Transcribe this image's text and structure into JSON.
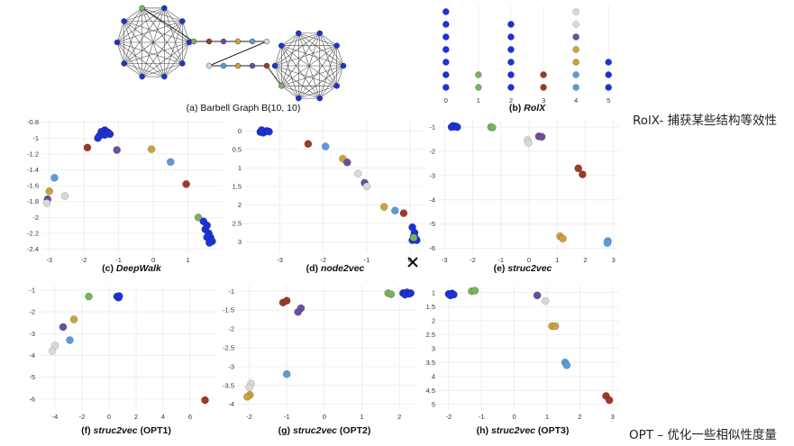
{
  "colors": {
    "blue": "#1d32d4",
    "red": "#9c3a2a",
    "green": "#79b25c",
    "purple": "#6a4f9a",
    "yellow": "#c9a23e",
    "lightblue": "#5b9bd8",
    "lightgray": "#d8d8d8",
    "edge": "#555555"
  },
  "figure_a": {
    "caption": "(a) Barbell Graph B(10, 10)"
  },
  "notes": {
    "rolx_note": "RolX- 捕获某些结构等效性",
    "opt_note": "OPT – 优化一些相似性度量"
  },
  "chart_data": [
    {
      "id": "b",
      "type": "scatter",
      "caption_label": "(b)",
      "caption_name": "RolX",
      "caption_suffix": "",
      "xlim": [
        -0.3,
        5.3
      ],
      "ylim": [
        0.5,
        7.5
      ],
      "xticks": [
        0,
        1,
        2,
        3,
        4,
        5
      ],
      "yticks": [],
      "points": [
        [
          0,
          1,
          "blue"
        ],
        [
          0,
          2,
          "blue"
        ],
        [
          0,
          3,
          "blue"
        ],
        [
          0,
          4,
          "blue"
        ],
        [
          0,
          5,
          "blue"
        ],
        [
          0,
          6,
          "blue"
        ],
        [
          0,
          7,
          "blue"
        ],
        [
          1,
          1,
          "green"
        ],
        [
          1,
          2,
          "green"
        ],
        [
          2,
          1,
          "blue"
        ],
        [
          2,
          2,
          "blue"
        ],
        [
          2,
          3,
          "blue"
        ],
        [
          2,
          4,
          "blue"
        ],
        [
          2,
          5,
          "blue"
        ],
        [
          2,
          6,
          "blue"
        ],
        [
          3,
          1,
          "red"
        ],
        [
          3,
          2,
          "red"
        ],
        [
          4,
          1,
          "lightblue"
        ],
        [
          4,
          2,
          "lightblue"
        ],
        [
          4,
          3,
          "yellow"
        ],
        [
          4,
          4,
          "yellow"
        ],
        [
          4,
          5,
          "purple"
        ],
        [
          4,
          6,
          "lightgray"
        ],
        [
          4,
          7,
          "lightgray"
        ],
        [
          5,
          1,
          "blue"
        ],
        [
          5,
          2,
          "blue"
        ],
        [
          5,
          3,
          "blue"
        ]
      ]
    },
    {
      "id": "c",
      "type": "scatter",
      "caption_label": "(c)",
      "caption_name": "DeepWalk",
      "caption_suffix": "",
      "xlim": [
        -3.2,
        2.0
      ],
      "ylim": [
        -2.45,
        -0.77
      ],
      "xticks": [
        -3,
        -2,
        -1,
        0,
        1
      ],
      "yticks": [
        -0.8,
        -1,
        -1.2,
        -1.4,
        -1.6,
        -1.8,
        -2,
        -2.2,
        -2.4
      ],
      "points": [
        [
          -1.4,
          -0.9,
          "blue"
        ],
        [
          -1.35,
          -0.92,
          "blue"
        ],
        [
          -1.3,
          -0.93,
          "blue"
        ],
        [
          -1.45,
          -0.95,
          "blue"
        ],
        [
          -1.5,
          -0.92,
          "blue"
        ],
        [
          -1.25,
          -0.95,
          "blue"
        ],
        [
          -1.55,
          -0.97,
          "blue"
        ],
        [
          -1.4,
          -0.96,
          "blue"
        ],
        [
          -1.6,
          -1.0,
          "blue"
        ],
        [
          -1.9,
          -1.12,
          "red"
        ],
        [
          -1.05,
          -1.15,
          "purple"
        ],
        [
          -0.05,
          -1.14,
          "yellow"
        ],
        [
          0.5,
          -1.3,
          "lightblue"
        ],
        [
          0.95,
          -1.58,
          "red"
        ],
        [
          1.3,
          -2.0,
          "green"
        ],
        [
          1.45,
          -2.05,
          "blue"
        ],
        [
          1.55,
          -2.1,
          "blue"
        ],
        [
          1.5,
          -2.15,
          "blue"
        ],
        [
          1.6,
          -2.2,
          "blue"
        ],
        [
          1.65,
          -2.25,
          "blue"
        ],
        [
          1.55,
          -2.25,
          "blue"
        ],
        [
          1.7,
          -2.3,
          "blue"
        ],
        [
          1.62,
          -2.32,
          "blue"
        ],
        [
          -2.85,
          -1.5,
          "lightblue"
        ],
        [
          -2.55,
          -1.73,
          "lightgray"
        ],
        [
          -3.0,
          -1.67,
          "yellow"
        ],
        [
          -3.05,
          -1.77,
          "purple"
        ],
        [
          -3.07,
          -1.82,
          "lightgray"
        ]
      ]
    },
    {
      "id": "d",
      "type": "scatter",
      "caption_label": "(d)",
      "caption_name": "node2vec",
      "caption_suffix": "",
      "xlim": [
        -3.8,
        0.35
      ],
      "ylim": [
        3.3,
        -0.3
      ],
      "xticks": [
        -3,
        -2,
        -1,
        0
      ],
      "yticks": [
        0,
        0.5,
        1,
        1.5,
        2,
        2.5,
        3
      ],
      "points": [
        [
          -3.4,
          0.0,
          "blue"
        ],
        [
          -3.35,
          0.02,
          "blue"
        ],
        [
          -3.3,
          0.0,
          "blue"
        ],
        [
          -3.45,
          0.03,
          "blue"
        ],
        [
          -3.38,
          0.05,
          "blue"
        ],
        [
          -3.25,
          0.02,
          "blue"
        ],
        [
          -3.42,
          -0.02,
          "blue"
        ],
        [
          -2.35,
          0.35,
          "red"
        ],
        [
          -1.95,
          0.42,
          "lightblue"
        ],
        [
          -1.55,
          0.75,
          "yellow"
        ],
        [
          -1.45,
          0.85,
          "purple"
        ],
        [
          -1.2,
          1.15,
          "lightgray"
        ],
        [
          -1.05,
          1.4,
          "purple"
        ],
        [
          -1.0,
          1.5,
          "lightgray"
        ],
        [
          -0.6,
          2.05,
          "yellow"
        ],
        [
          -0.35,
          2.15,
          "lightblue"
        ],
        [
          -0.15,
          2.22,
          "red"
        ],
        [
          0.05,
          2.6,
          "blue"
        ],
        [
          0.1,
          2.75,
          "blue"
        ],
        [
          0.08,
          2.85,
          "blue"
        ],
        [
          0.12,
          2.9,
          "blue"
        ],
        [
          0.05,
          2.95,
          "blue"
        ],
        [
          0.15,
          2.95,
          "blue"
        ],
        [
          0.08,
          2.88,
          "green"
        ]
      ]
    },
    {
      "id": "e",
      "type": "scatter",
      "caption_label": "(e)",
      "caption_name": "struc2vec",
      "caption_suffix": "",
      "xlim": [
        -3.2,
        3.2
      ],
      "ylim": [
        -6.2,
        -0.7
      ],
      "xticks": [
        -3,
        -2,
        -1,
        0,
        1,
        2,
        3
      ],
      "yticks": [
        -1,
        -2,
        -3,
        -4,
        -5,
        -6
      ],
      "points": [
        [
          -2.7,
          -0.95,
          "blue"
        ],
        [
          -2.65,
          -0.98,
          "blue"
        ],
        [
          -2.6,
          -0.97,
          "blue"
        ],
        [
          -2.75,
          -1.0,
          "blue"
        ],
        [
          -2.55,
          -1.0,
          "blue"
        ],
        [
          -1.35,
          -1.0,
          "green"
        ],
        [
          -1.3,
          -1.02,
          "green"
        ],
        [
          0.35,
          -1.38,
          "purple"
        ],
        [
          0.45,
          -1.4,
          "purple"
        ],
        [
          -0.05,
          -1.53,
          "lightgray"
        ],
        [
          -0.02,
          -1.65,
          "lightgray"
        ],
        [
          1.75,
          -2.7,
          "red"
        ],
        [
          1.9,
          -2.95,
          "red"
        ],
        [
          1.1,
          -5.5,
          "yellow"
        ],
        [
          1.2,
          -5.6,
          "yellow"
        ],
        [
          2.8,
          -5.7,
          "lightblue"
        ],
        [
          2.78,
          -5.78,
          "lightblue"
        ]
      ]
    },
    {
      "id": "f",
      "type": "scatter",
      "caption_label": "(f)",
      "caption_name": "struc2vec",
      "caption_suffix": " (OPT1)",
      "xlim": [
        -5.2,
        8.0
      ],
      "ylim": [
        -6.5,
        -0.8
      ],
      "xticks": [
        -4,
        -2,
        0,
        2,
        4,
        6
      ],
      "yticks": [
        -1,
        -2,
        -3,
        -4,
        -5,
        -6
      ],
      "points": [
        [
          -1.5,
          -1.3,
          "green"
        ],
        [
          0.6,
          -1.3,
          "blue"
        ],
        [
          0.7,
          -1.35,
          "blue"
        ],
        [
          0.75,
          -1.28,
          "blue"
        ],
        [
          -3.4,
          -2.7,
          "purple"
        ],
        [
          -2.6,
          -2.35,
          "yellow"
        ],
        [
          -2.9,
          -3.3,
          "lightblue"
        ],
        [
          -4.0,
          -3.55,
          "lightgray"
        ],
        [
          -4.2,
          -3.8,
          "lightgray"
        ],
        [
          7.1,
          -6.05,
          "red"
        ]
      ]
    },
    {
      "id": "g",
      "type": "scatter",
      "caption_label": "(g)",
      "caption_name": "struc2vec",
      "caption_suffix": " (OPT2)",
      "xlim": [
        -2.3,
        2.5
      ],
      "ylim": [
        -4.15,
        -0.85
      ],
      "xticks": [
        -2,
        -1,
        0,
        1,
        2
      ],
      "yticks": [
        -1,
        -1.5,
        -2,
        -2.5,
        -3,
        -3.5,
        -4
      ],
      "points": [
        [
          1.7,
          -1.05,
          "green"
        ],
        [
          1.78,
          -1.08,
          "green"
        ],
        [
          2.1,
          -1.05,
          "blue"
        ],
        [
          2.2,
          -1.03,
          "blue"
        ],
        [
          2.25,
          -1.07,
          "blue"
        ],
        [
          2.15,
          -1.09,
          "blue"
        ],
        [
          2.3,
          -1.05,
          "blue"
        ],
        [
          -1.1,
          -1.3,
          "red"
        ],
        [
          -1.0,
          -1.25,
          "red"
        ],
        [
          -0.62,
          -1.45,
          "purple"
        ],
        [
          -0.7,
          -1.55,
          "purple"
        ],
        [
          -1.0,
          -3.2,
          "lightblue"
        ],
        [
          -1.95,
          -3.45,
          "lightgray"
        ],
        [
          -2.0,
          -3.55,
          "lightgray"
        ],
        [
          -1.98,
          -3.75,
          "yellow"
        ],
        [
          -2.05,
          -3.8,
          "yellow"
        ]
      ]
    },
    {
      "id": "h",
      "type": "scatter",
      "caption_label": "(h)",
      "caption_name": "struc2vec",
      "caption_suffix": " (OPT3)",
      "xlim": [
        -2.3,
        3.2
      ],
      "ylim": [
        5.2,
        0.75
      ],
      "xticks": [
        -2,
        -1,
        0,
        1,
        2,
        3
      ],
      "yticks": [
        1,
        1.5,
        2,
        2.5,
        3,
        3.5,
        4,
        4.5,
        5
      ],
      "points": [
        [
          -2.0,
          1.05,
          "blue"
        ],
        [
          -1.9,
          1.03,
          "blue"
        ],
        [
          -1.95,
          1.1,
          "blue"
        ],
        [
          -1.85,
          1.07,
          "blue"
        ],
        [
          -1.3,
          0.95,
          "green"
        ],
        [
          -1.2,
          0.93,
          "green"
        ],
        [
          0.7,
          1.1,
          "purple"
        ],
        [
          0.95,
          1.3,
          "lightgray"
        ],
        [
          1.15,
          2.2,
          "yellow"
        ],
        [
          1.25,
          2.2,
          "yellow"
        ],
        [
          1.55,
          3.5,
          "lightblue"
        ],
        [
          1.6,
          3.6,
          "lightblue"
        ],
        [
          2.8,
          4.7,
          "red"
        ],
        [
          2.9,
          4.85,
          "red"
        ]
      ]
    }
  ]
}
